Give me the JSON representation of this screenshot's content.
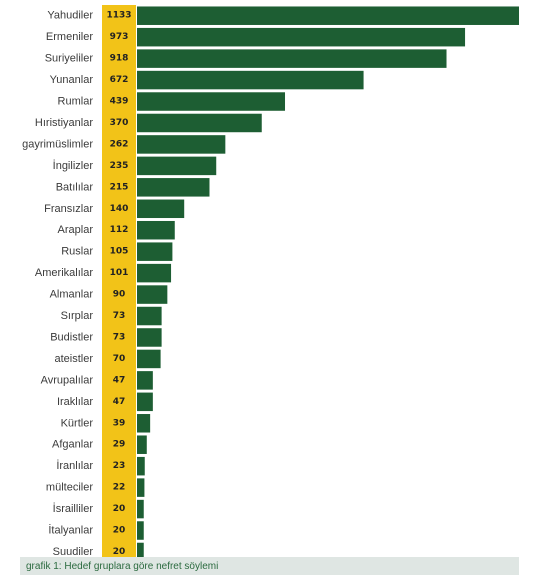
{
  "caption": "grafik 1: Hedef gruplara göre nefret söylemi",
  "colors": {
    "bar": "#1d5e33",
    "value_column": "#f2c318",
    "caption_background": "#dfe6e3",
    "caption_text": "#2b6a3f"
  },
  "chart_data": {
    "type": "bar",
    "orientation": "horizontal",
    "title": "",
    "xlabel": "",
    "ylabel": "",
    "grid": false,
    "xlim": [
      0,
      1133
    ],
    "categories": [
      "Yahudiler",
      "Ermeniler",
      "Suriyeliler",
      "Yunanlar",
      "Rumlar",
      "Hıristiyanlar",
      "gayrimüslimler",
      "İngilizler",
      "Batılılar",
      "Fransızlar",
      "Araplar",
      "Ruslar",
      "Amerikalılar",
      "Almanlar",
      "Sırplar",
      "Budistler",
      "ateistler",
      "Avrupalılar",
      "Iraklılar",
      "Kürtler",
      "Afganlar",
      "İranlılar",
      "mülteciler",
      "İsrailliler",
      "İtalyanlar",
      "Suudiler"
    ],
    "values": [
      1133,
      973,
      918,
      672,
      439,
      370,
      262,
      235,
      215,
      140,
      112,
      105,
      101,
      90,
      73,
      73,
      70,
      47,
      47,
      39,
      29,
      23,
      22,
      20,
      20,
      20
    ]
  }
}
